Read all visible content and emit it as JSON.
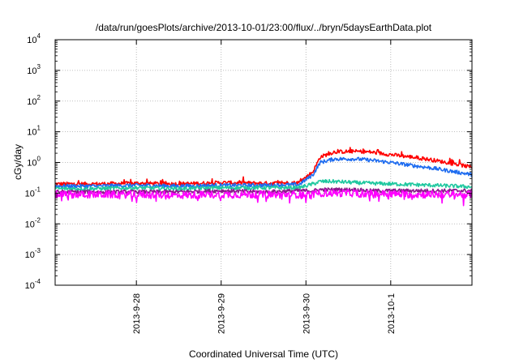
{
  "chart_data": {
    "type": "line",
    "title": "/data/run/goesPlots/archive/2013-10-01/23:00/flux/../bryn/5daysEarthData.plot",
    "xlabel": "Coordinated Universal Time (UTC)",
    "ylabel": "cGy/day",
    "y_scale": "log",
    "ylim": [
      0.0001,
      10000
    ],
    "y_ticks": [
      {
        "value": 0.0001,
        "base": "10",
        "exp": "-4"
      },
      {
        "value": 0.001,
        "base": "10",
        "exp": "-3"
      },
      {
        "value": 0.01,
        "base": "10",
        "exp": "-2"
      },
      {
        "value": 0.1,
        "base": "10",
        "exp": "-1"
      },
      {
        "value": 1,
        "base": "10",
        "exp": "0"
      },
      {
        "value": 10,
        "base": "10",
        "exp": "1"
      },
      {
        "value": 100,
        "base": "10",
        "exp": "2"
      },
      {
        "value": 1000,
        "base": "10",
        "exp": "3"
      },
      {
        "value": 10000,
        "base": "10",
        "exp": "4"
      }
    ],
    "xlim": [
      "2013-09-27 01:00",
      "2013-10-01 23:00"
    ],
    "x_ticks": [
      {
        "value": "2013-09-28 00:00",
        "label": "2013-9-28"
      },
      {
        "value": "2013-09-29 00:00",
        "label": "2013-9-29"
      },
      {
        "value": "2013-09-30 00:00",
        "label": "2013-9-30"
      },
      {
        "value": "2013-10-01 00:00",
        "label": "2013-10-1"
      }
    ],
    "grid": true,
    "series": [
      {
        "color": "#ff0000",
        "x": [
          "2013-09-27 01:00",
          "2013-09-27 12:00",
          "2013-09-28 00:00",
          "2013-09-28 12:00",
          "2013-09-29 00:00",
          "2013-09-29 12:00",
          "2013-09-29 22:00",
          "2013-09-30 02:00",
          "2013-09-30 04:00",
          "2013-09-30 08:00",
          "2013-09-30 14:00",
          "2013-09-30 18:00",
          "2013-10-01 00:00",
          "2013-10-01 06:00",
          "2013-10-01 12:00",
          "2013-10-01 18:00",
          "2013-10-01 23:00"
        ],
        "y": [
          0.2,
          0.2,
          0.21,
          0.2,
          0.22,
          0.21,
          0.22,
          0.5,
          1.5,
          2.2,
          2.3,
          2.2,
          1.8,
          1.5,
          1.2,
          0.9,
          0.7
        ]
      },
      {
        "color": "#1e6cf0",
        "x": [
          "2013-09-27 01:00",
          "2013-09-27 12:00",
          "2013-09-28 00:00",
          "2013-09-28 12:00",
          "2013-09-29 00:00",
          "2013-09-29 12:00",
          "2013-09-29 22:00",
          "2013-09-30 02:00",
          "2013-09-30 04:00",
          "2013-09-30 08:00",
          "2013-09-30 14:00",
          "2013-09-30 18:00",
          "2013-10-01 00:00",
          "2013-10-01 06:00",
          "2013-10-01 12:00",
          "2013-10-01 18:00",
          "2013-10-01 23:00"
        ],
        "y": [
          0.17,
          0.17,
          0.18,
          0.17,
          0.18,
          0.18,
          0.19,
          0.4,
          1.0,
          1.3,
          1.3,
          1.2,
          1.0,
          0.8,
          0.65,
          0.5,
          0.4
        ]
      },
      {
        "color": "#20c8a0",
        "x": [
          "2013-09-27 01:00",
          "2013-09-27 12:00",
          "2013-09-28 00:00",
          "2013-09-28 12:00",
          "2013-09-29 00:00",
          "2013-09-29 12:00",
          "2013-09-29 22:00",
          "2013-09-30 02:00",
          "2013-09-30 04:00",
          "2013-09-30 08:00",
          "2013-09-30 14:00",
          "2013-09-30 18:00",
          "2013-10-01 00:00",
          "2013-10-01 06:00",
          "2013-10-01 12:00",
          "2013-10-01 18:00",
          "2013-10-01 23:00"
        ],
        "y": [
          0.14,
          0.14,
          0.15,
          0.14,
          0.15,
          0.15,
          0.15,
          0.2,
          0.24,
          0.24,
          0.22,
          0.21,
          0.2,
          0.19,
          0.18,
          0.17,
          0.16
        ]
      },
      {
        "color": "#8b1a8b",
        "x": [
          "2013-09-27 01:00",
          "2013-09-27 12:00",
          "2013-09-28 00:00",
          "2013-09-28 12:00",
          "2013-09-29 00:00",
          "2013-09-29 12:00",
          "2013-09-29 22:00",
          "2013-09-30 02:00",
          "2013-09-30 04:00",
          "2013-09-30 08:00",
          "2013-09-30 14:00",
          "2013-09-30 18:00",
          "2013-10-01 00:00",
          "2013-10-01 06:00",
          "2013-10-01 12:00",
          "2013-10-01 18:00",
          "2013-10-01 23:00"
        ],
        "y": [
          0.11,
          0.11,
          0.11,
          0.11,
          0.12,
          0.11,
          0.12,
          0.12,
          0.13,
          0.13,
          0.13,
          0.12,
          0.12,
          0.12,
          0.12,
          0.12,
          0.12
        ]
      },
      {
        "color": "#ff00ff",
        "x": [
          "2013-09-27 01:00",
          "2013-09-27 12:00",
          "2013-09-28 00:00",
          "2013-09-28 12:00",
          "2013-09-29 00:00",
          "2013-09-29 12:00",
          "2013-09-29 22:00",
          "2013-09-30 02:00",
          "2013-09-30 04:00",
          "2013-09-30 08:00",
          "2013-09-30 14:00",
          "2013-09-30 18:00",
          "2013-10-01 00:00",
          "2013-10-01 06:00",
          "2013-10-01 12:00",
          "2013-10-01 18:00",
          "2013-10-01 23:00"
        ],
        "y": [
          0.09,
          0.09,
          0.09,
          0.085,
          0.09,
          0.09,
          0.09,
          0.09,
          0.1,
          0.1,
          0.1,
          0.095,
          0.095,
          0.09,
          0.09,
          0.09,
          0.09
        ]
      }
    ]
  }
}
